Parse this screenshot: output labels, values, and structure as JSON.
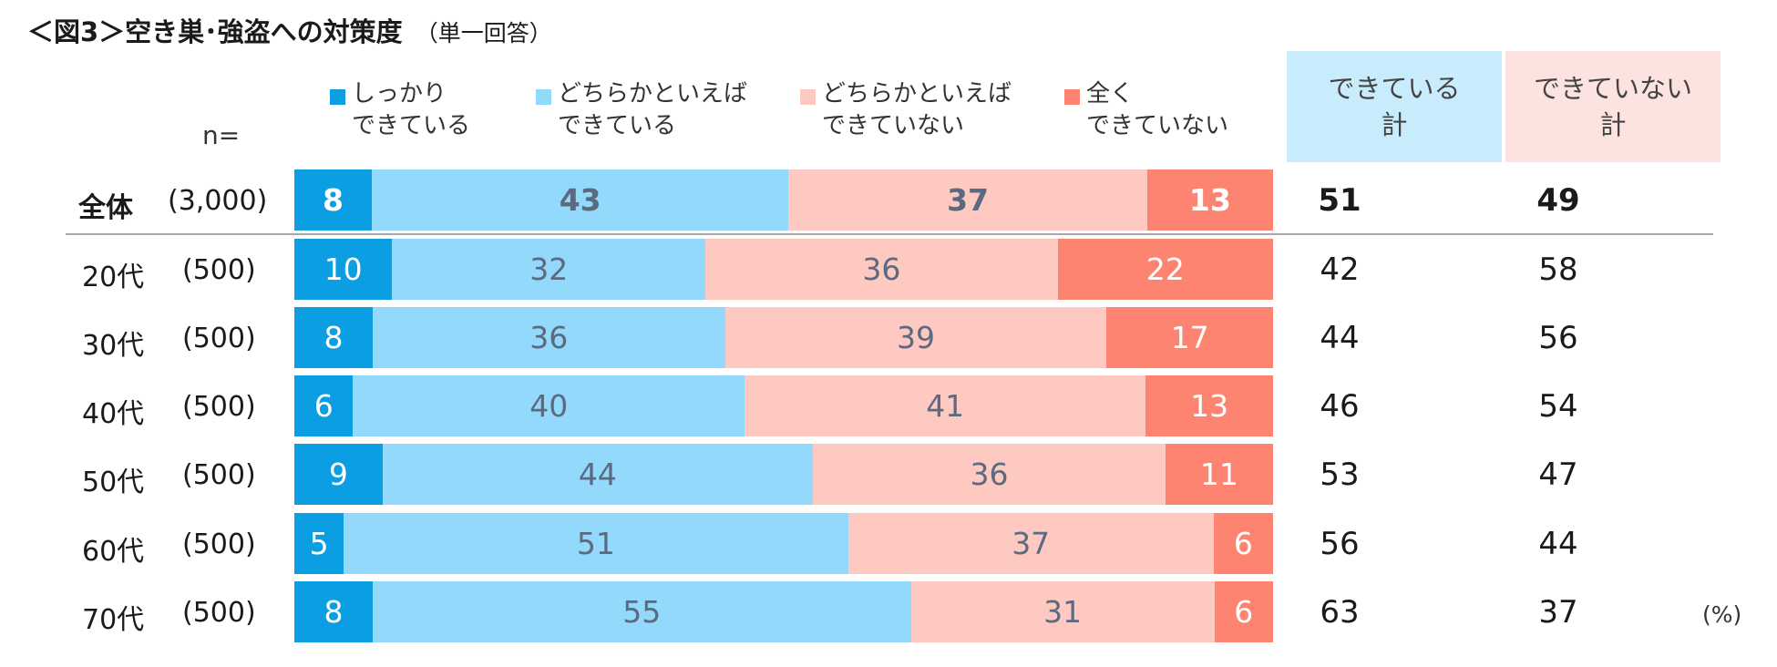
{
  "title": "＜図3＞空き巣･強盗への対策度",
  "subtitle": "（単一回答）",
  "n_label": "n=",
  "unit": "(%)",
  "summary_headers": [
    "できている\n計",
    "できていない\n計"
  ],
  "colors": {
    "s1": "#0b9ee3",
    "s2": "#93d9fb",
    "s3": "#fdc9c0",
    "s4": "#fd8470",
    "header_yes": "#c8ecfc",
    "header_no": "#fde3df",
    "label_dark": "#5b6a80",
    "label_white": "#ffffff"
  },
  "chart_data": {
    "type": "bar",
    "orientation": "horizontal",
    "stacked": true,
    "title": "＜図3＞空き巣･強盗への対策度",
    "xlim": [
      0,
      100
    ],
    "legend_position": "top",
    "series": [
      {
        "name": "しっかり\nできている",
        "values": [
          8,
          10,
          8,
          6,
          9,
          5,
          8
        ]
      },
      {
        "name": "どちらかといえば\nできている",
        "values": [
          43,
          32,
          36,
          40,
          44,
          51,
          55
        ]
      },
      {
        "name": "どちらかといえば\nできていない",
        "values": [
          37,
          36,
          39,
          41,
          36,
          37,
          31
        ]
      },
      {
        "name": "全く\nできていない",
        "values": [
          13,
          22,
          17,
          13,
          11,
          6,
          6
        ]
      }
    ],
    "categories": [
      {
        "name": "全体",
        "n": "(3,000)"
      },
      {
        "name": "20代",
        "n": "(500)"
      },
      {
        "name": "30代",
        "n": "(500)"
      },
      {
        "name": "40代",
        "n": "(500)"
      },
      {
        "name": "50代",
        "n": "(500)"
      },
      {
        "name": "60代",
        "n": "(500)"
      },
      {
        "name": "70代",
        "n": "(500)"
      }
    ],
    "summary_yes": [
      51,
      42,
      44,
      46,
      53,
      56,
      63
    ],
    "summary_no": [
      49,
      58,
      56,
      54,
      47,
      44,
      37
    ]
  }
}
